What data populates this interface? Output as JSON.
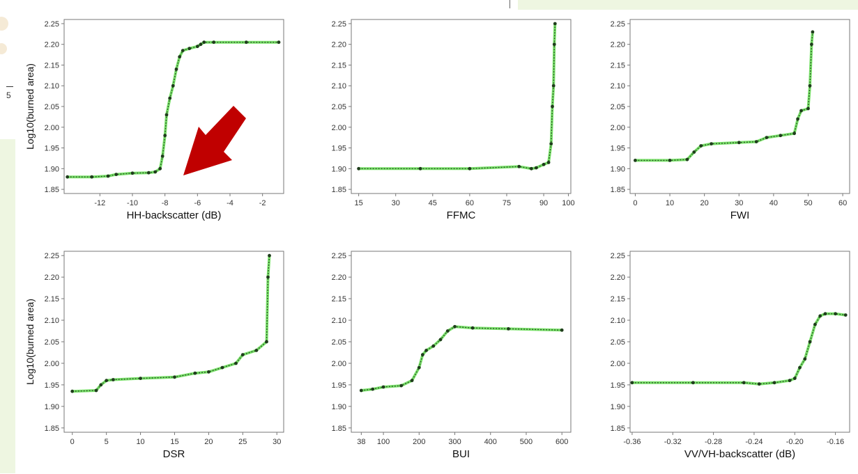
{
  "chart_data": [
    {
      "type": "line",
      "xlabel": "HH-backscatter (dB)",
      "ylabel": "Log10(burned area)",
      "xlim": [
        -14.2,
        -0.7
      ],
      "ylim": [
        1.84,
        2.26
      ],
      "xticks": [
        -12,
        -10,
        -8,
        -6,
        -4,
        -2
      ],
      "xtick_labels": [
        "-12",
        "-10",
        "-8",
        "-6",
        "-4",
        "-2"
      ],
      "yticks": [
        1.85,
        1.9,
        1.95,
        2.0,
        2.05,
        2.1,
        2.15,
        2.2,
        2.25
      ],
      "ytick_labels": [
        "1.85",
        "1.90",
        "1.95",
        "2.00",
        "2.05",
        "2.10",
        "2.15",
        "2.20",
        "2.25"
      ],
      "x": [
        -14,
        -12.5,
        -11.5,
        -11,
        -10,
        -9,
        -8.6,
        -8.3,
        -8.15,
        -8.0,
        -7.9,
        -7.7,
        -7.5,
        -7.3,
        -7.1,
        -6.9,
        -6.5,
        -6.0,
        -5.8,
        -5.6,
        -5.0,
        -3.0,
        -1.0
      ],
      "y": [
        1.88,
        1.88,
        1.882,
        1.886,
        1.889,
        1.89,
        1.892,
        1.9,
        1.93,
        1.98,
        2.03,
        2.07,
        2.1,
        2.14,
        2.17,
        2.185,
        2.19,
        2.195,
        2.2,
        2.205,
        2.205,
        2.205,
        2.205
      ]
    },
    {
      "type": "line",
      "xlabel": "FFMC",
      "ylabel": "",
      "xlim": [
        12,
        101
      ],
      "ylim": [
        1.84,
        2.26
      ],
      "xticks": [
        15,
        30,
        45,
        60,
        75,
        90,
        100
      ],
      "xtick_labels": [
        "15",
        "30",
        "45",
        "60",
        "75",
        "90",
        "100"
      ],
      "yticks": [
        1.85,
        1.9,
        1.95,
        2.0,
        2.05,
        2.1,
        2.15,
        2.2,
        2.25
      ],
      "ytick_labels": [
        "1.85",
        "1.90",
        "1.95",
        "2.00",
        "2.05",
        "2.10",
        "2.15",
        "2.20",
        "2.25"
      ],
      "x": [
        15,
        40,
        60,
        80,
        85,
        87,
        90,
        92,
        93,
        93.5,
        94,
        94.3,
        94.6
      ],
      "y": [
        1.9,
        1.9,
        1.9,
        1.905,
        1.9,
        1.902,
        1.91,
        1.915,
        1.96,
        2.05,
        2.1,
        2.2,
        2.25
      ]
    },
    {
      "type": "line",
      "xlabel": "FWI",
      "ylabel": "",
      "xlim": [
        -1.5,
        62
      ],
      "ylim": [
        1.84,
        2.26
      ],
      "xticks": [
        0,
        10,
        20,
        30,
        40,
        50,
        60
      ],
      "xtick_labels": [
        "0",
        "10",
        "20",
        "30",
        "40",
        "50",
        "60"
      ],
      "yticks": [
        1.85,
        1.9,
        1.95,
        2.0,
        2.05,
        2.1,
        2.15,
        2.2,
        2.25
      ],
      "ytick_labels": [
        "1.85",
        "1.90",
        "1.95",
        "2.00",
        "2.05",
        "2.10",
        "2.15",
        "2.20",
        "2.25"
      ],
      "x": [
        0,
        10,
        15,
        17,
        19,
        22,
        30,
        35,
        38,
        42,
        46,
        47,
        48,
        50,
        50.5,
        51,
        51.3
      ],
      "y": [
        1.92,
        1.92,
        1.922,
        1.94,
        1.955,
        1.96,
        1.963,
        1.965,
        1.975,
        1.98,
        1.985,
        2.02,
        2.04,
        2.045,
        2.1,
        2.2,
        2.23
      ]
    },
    {
      "type": "line",
      "xlabel": "DSR",
      "ylabel": "Log10(burned area)",
      "xlim": [
        -1.2,
        31
      ],
      "ylim": [
        1.84,
        2.26
      ],
      "xticks": [
        0,
        5,
        10,
        15,
        20,
        25,
        30
      ],
      "xtick_labels": [
        "0",
        "5",
        "10",
        "15",
        "20",
        "25",
        "30"
      ],
      "yticks": [
        1.85,
        1.9,
        1.95,
        2.0,
        2.05,
        2.1,
        2.15,
        2.2,
        2.25
      ],
      "ytick_labels": [
        "1.85",
        "1.90",
        "1.95",
        "2.00",
        "2.05",
        "2.10",
        "2.15",
        "2.20",
        "2.25"
      ],
      "x": [
        0,
        3.5,
        4.2,
        5,
        6,
        10,
        15,
        18,
        20,
        22,
        24,
        25,
        27,
        28.5,
        28.7,
        28.9
      ],
      "y": [
        1.935,
        1.937,
        1.95,
        1.96,
        1.962,
        1.965,
        1.968,
        1.977,
        1.98,
        1.99,
        2.0,
        2.02,
        2.03,
        2.05,
        2.2,
        2.25
      ]
    },
    {
      "type": "line",
      "xlabel": "BUI",
      "ylabel": "",
      "xlim": [
        10,
        625
      ],
      "ylim": [
        1.84,
        2.26
      ],
      "xticks": [
        38,
        100,
        200,
        300,
        400,
        500,
        600
      ],
      "xtick_labels": [
        "38",
        "100",
        "200",
        "300",
        "400",
        "500",
        "600"
      ],
      "yticks": [
        1.85,
        1.9,
        1.95,
        2.0,
        2.05,
        2.1,
        2.15,
        2.2,
        2.25
      ],
      "ytick_labels": [
        "1.85",
        "1.90",
        "1.95",
        "2.00",
        "2.05",
        "2.10",
        "2.15",
        "2.20",
        "2.25"
      ],
      "x": [
        38,
        70,
        100,
        150,
        180,
        200,
        210,
        220,
        240,
        260,
        280,
        300,
        350,
        450,
        600
      ],
      "y": [
        1.937,
        1.94,
        1.945,
        1.948,
        1.96,
        1.99,
        2.02,
        2.03,
        2.04,
        2.055,
        2.075,
        2.085,
        2.082,
        2.08,
        2.077
      ]
    },
    {
      "type": "line",
      "xlabel": "VV/VH-backscatter (dB)",
      "ylabel": "",
      "xlim": [
        -0.362,
        -0.146
      ],
      "ylim": [
        1.84,
        2.26
      ],
      "xticks": [
        -0.36,
        -0.32,
        -0.28,
        -0.24,
        -0.2,
        -0.16
      ],
      "xtick_labels": [
        "-0.36",
        "-0.32",
        "-0.28",
        "-0.24",
        "-0.20",
        "-0.16"
      ],
      "yticks": [
        1.85,
        1.9,
        1.95,
        2.0,
        2.05,
        2.1,
        2.15,
        2.2,
        2.25
      ],
      "ytick_labels": [
        "1.85",
        "1.90",
        "1.95",
        "2.00",
        "2.05",
        "2.10",
        "2.15",
        "2.20",
        "2.25"
      ],
      "x": [
        -0.36,
        -0.3,
        -0.25,
        -0.235,
        -0.22,
        -0.205,
        -0.2,
        -0.195,
        -0.19,
        -0.185,
        -0.18,
        -0.175,
        -0.17,
        -0.16,
        -0.15
      ],
      "y": [
        1.955,
        1.955,
        1.955,
        1.952,
        1.955,
        1.96,
        1.965,
        1.99,
        2.01,
        2.05,
        2.09,
        2.11,
        2.115,
        2.115,
        2.112
      ]
    }
  ],
  "colors": {
    "line": "#7be36b",
    "points": "#1f3d1c",
    "frame": "#777777",
    "tick_text": "#333333",
    "arrow": "#c00000"
  },
  "annotation": {
    "arrow_icon": "red-arrow-icon"
  },
  "side_mark": "5"
}
